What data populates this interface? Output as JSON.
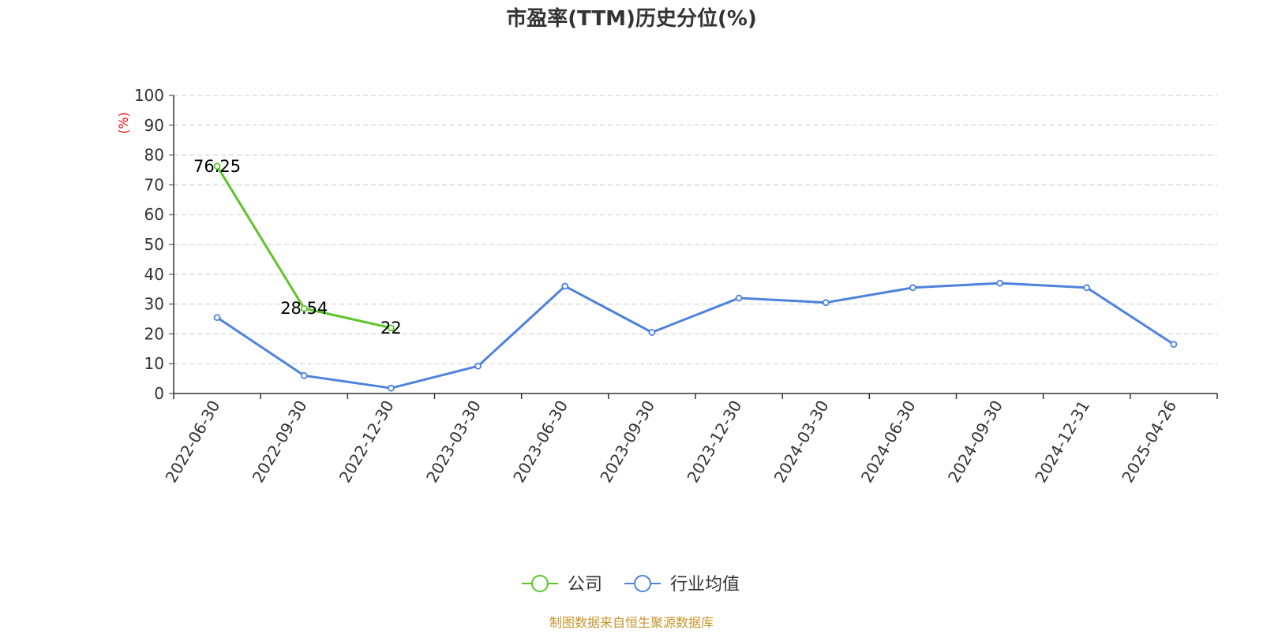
{
  "chart_data": {
    "type": "line",
    "title": "市盈率(TTM)历史分位(%)",
    "ylabel": "(%)",
    "ylim": [
      0,
      100
    ],
    "yticks": [
      0,
      10,
      20,
      30,
      40,
      50,
      60,
      70,
      80,
      90,
      100
    ],
    "grid": true,
    "legend_position": "bottom-center",
    "categories": [
      "2022-06-30",
      "2022-09-30",
      "2022-12-30",
      "2023-03-30",
      "2023-06-30",
      "2023-09-30",
      "2023-12-30",
      "2024-03-30",
      "2024-06-30",
      "2024-09-30",
      "2024-12-31",
      "2025-04-26"
    ],
    "series": [
      {
        "name": "公司",
        "color": "#5cc52a",
        "values": [
          76.25,
          28.54,
          22,
          null,
          null,
          null,
          null,
          null,
          null,
          null,
          null,
          null
        ],
        "labels": [
          "76.25",
          "28.54",
          "22"
        ]
      },
      {
        "name": "行业均值",
        "color": "#4e82dd",
        "values": [
          25.5,
          6,
          1.8,
          9.2,
          36,
          20.5,
          32,
          30.5,
          35.5,
          37,
          35.5,
          16.5
        ]
      }
    ],
    "source": "制图数据来自恒生聚源数据库",
    "colors": {
      "axis": "#333333",
      "grid": "#cccccc",
      "unit": "#ff0000",
      "source": "#c8962e"
    }
  }
}
